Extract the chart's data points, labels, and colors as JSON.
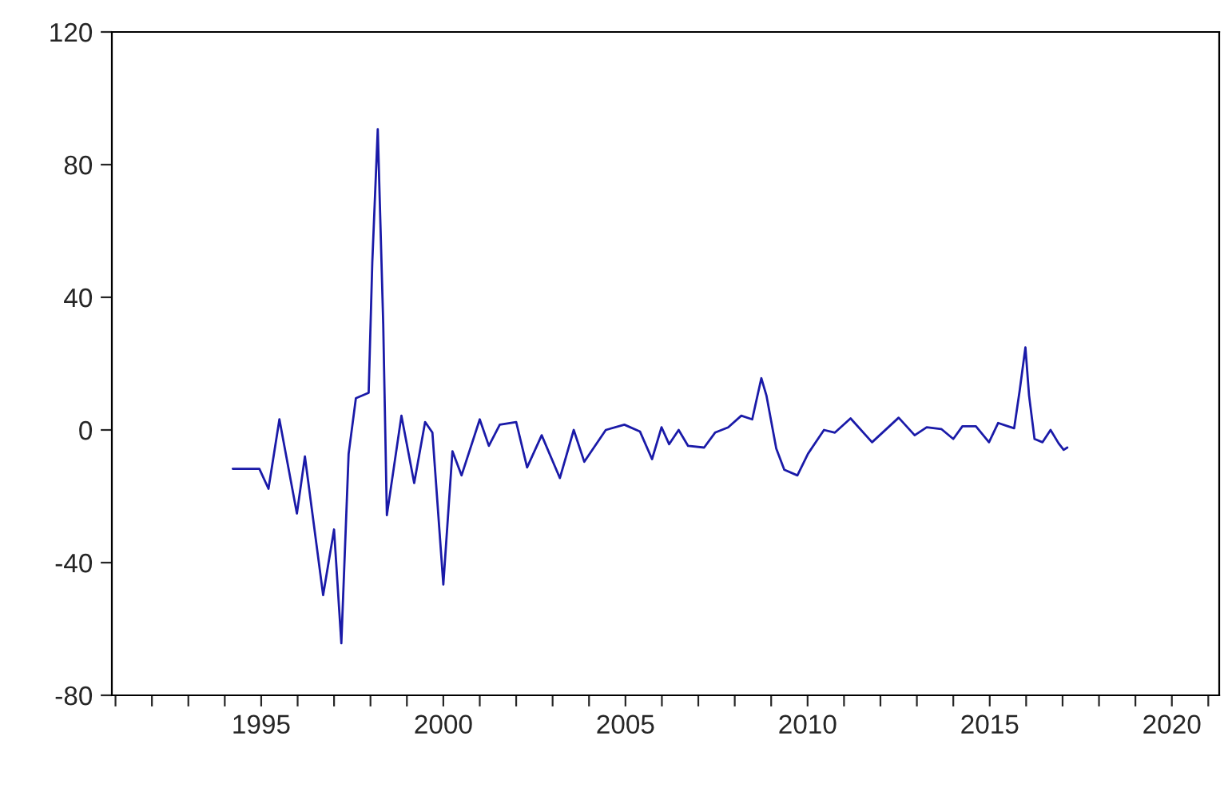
{
  "chart_data": {
    "type": "line",
    "x": [
      1994.22,
      1994.95,
      1995.2,
      1995.5,
      1995.98,
      1996.2,
      1996.7,
      1997.0,
      1997.2,
      1997.4,
      1997.6,
      1997.95,
      1998.05,
      1998.2,
      1998.35,
      1998.45,
      1998.85,
      1999.2,
      1999.5,
      1999.7,
      2000.0,
      2000.25,
      2000.5,
      2001.0,
      2001.25,
      2001.55,
      2002.0,
      2002.3,
      2002.7,
      2003.2,
      2003.58,
      2003.87,
      2004.46,
      2004.97,
      2005.4,
      2005.73,
      2005.99,
      2006.2,
      2006.46,
      2006.72,
      2007.16,
      2007.46,
      2007.82,
      2008.18,
      2008.48,
      2008.73,
      2008.87,
      2009.14,
      2009.36,
      2009.72,
      2010.01,
      2010.45,
      2010.75,
      2011.18,
      2011.77,
      2012.5,
      2012.94,
      2013.27,
      2013.67,
      2014.0,
      2014.25,
      2014.62,
      2014.98,
      2015.23,
      2015.5,
      2015.67,
      2015.82,
      2015.98,
      2016.08,
      2016.23,
      2016.45,
      2016.67,
      2016.89,
      2017.03,
      2017.13
    ],
    "series": [
      {
        "color": "#1a1aa8",
        "values": [
          -11.7,
          -11.7,
          -17.7,
          3.2,
          -25.2,
          -8,
          -49.8,
          -30,
          -64.3,
          -7.2,
          9.6,
          11.2,
          50.6,
          90.7,
          32,
          -25.7,
          4.3,
          -16,
          2.4,
          -0.8,
          -46.6,
          -6.4,
          -13.7,
          3.2,
          -4.8,
          1.6,
          2.4,
          -11.3,
          -1.6,
          -14.5,
          0,
          -9.6,
          0,
          1.6,
          -0.5,
          -8.8,
          0.8,
          -4.3,
          0,
          -4.8,
          -5.3,
          -0.8,
          0.8,
          4.3,
          3.2,
          15.6,
          10.4,
          -5.6,
          -12,
          -13.7,
          -7.2,
          0,
          -0.8,
          3.5,
          -3.7,
          3.7,
          -1.6,
          0.8,
          0.3,
          -2.7,
          1.1,
          1.1,
          -3.7,
          2.1,
          1.1,
          0.5,
          11.7,
          24.9,
          10.4,
          -2.7,
          -3.7,
          0,
          -4,
          -6,
          -5.3
        ]
      }
    ],
    "xlim": [
      1990.9,
      2021.3
    ],
    "xticks": [
      {
        "value": 1991,
        "label": null
      },
      {
        "value": 1992,
        "label": null
      },
      {
        "value": 1993,
        "label": null
      },
      {
        "value": 1994,
        "label": null
      },
      1995,
      {
        "value": 1996,
        "label": null
      },
      {
        "value": 1997,
        "label": null
      },
      {
        "value": 1998,
        "label": null
      },
      {
        "value": 1999,
        "label": null
      },
      2000,
      {
        "value": 2001,
        "label": null
      },
      {
        "value": 2002,
        "label": null
      },
      {
        "value": 2003,
        "label": null
      },
      {
        "value": 2004,
        "label": null
      },
      2005,
      {
        "value": 2006,
        "label": null
      },
      {
        "value": 2007,
        "label": null
      },
      {
        "value": 2008,
        "label": null
      },
      {
        "value": 2009,
        "label": null
      },
      2010,
      {
        "value": 2011,
        "label": null
      },
      {
        "value": 2012,
        "label": null
      },
      {
        "value": 2013,
        "label": null
      },
      {
        "value": 2014,
        "label": null
      },
      2015,
      {
        "value": 2016,
        "label": null
      },
      {
        "value": 2017,
        "label": null
      },
      {
        "value": 2018,
        "label": null
      },
      {
        "value": 2019,
        "label": null
      },
      2020,
      {
        "value": 2021,
        "label": null
      }
    ],
    "ylim": [
      -80,
      120
    ],
    "yticks": [
      -80,
      -40,
      0,
      40,
      80,
      120
    ],
    "grid": false,
    "marker": "none",
    "line_style": "solid"
  }
}
